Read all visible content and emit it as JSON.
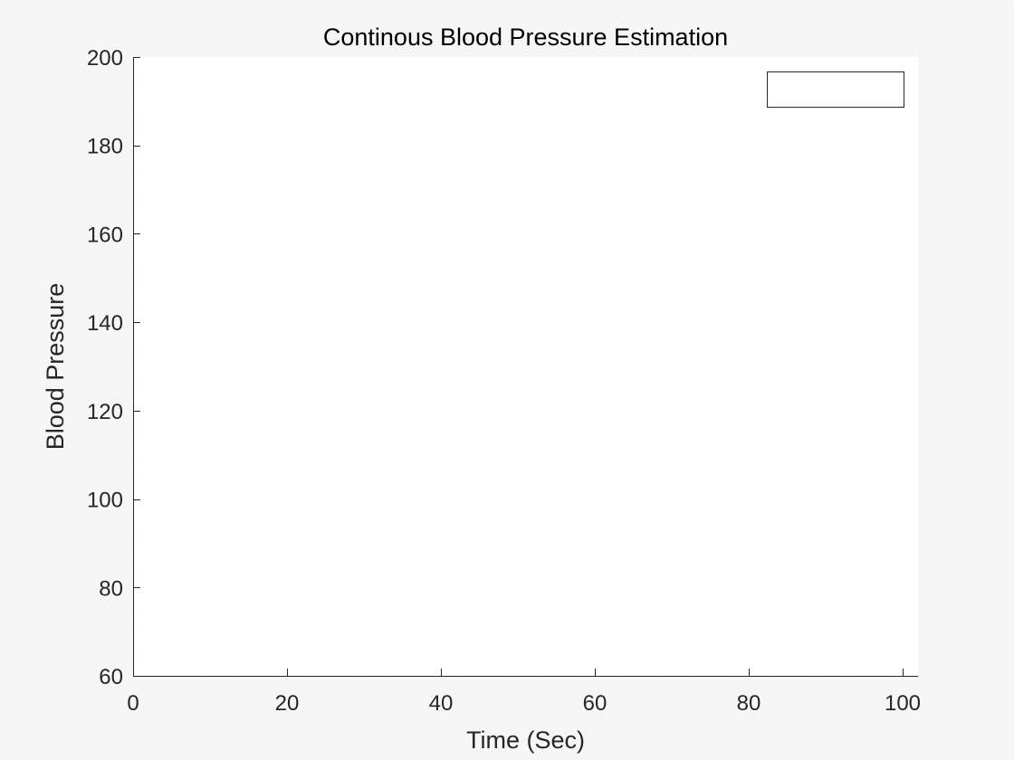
{
  "chart_data": {
    "type": "line",
    "title": "Continous Blood Pressure Estimation",
    "xlabel": "Time (Sec)",
    "ylabel": "Blood Pressure",
    "xlim": [
      0,
      102
    ],
    "ylim": [
      60,
      200
    ],
    "x_ticks": [
      0,
      20,
      40,
      60,
      80,
      100
    ],
    "y_ticks": [
      60,
      80,
      100,
      120,
      140,
      160,
      180,
      200
    ],
    "x_tick_labels": [
      "0",
      "20",
      "40",
      "60",
      "80",
      "100"
    ],
    "y_tick_labels": [
      "60",
      "80",
      "100",
      "120",
      "140",
      "160",
      "180",
      "200"
    ],
    "series": [],
    "grid": false,
    "legend": {
      "placement": "top-right",
      "entries": []
    },
    "colors": {
      "axes": "#262626",
      "plot_background": "#ffffff",
      "title": "#000000"
    }
  }
}
